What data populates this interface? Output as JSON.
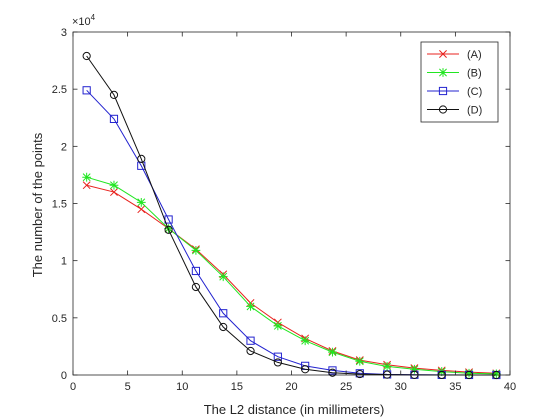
{
  "chart_data": {
    "type": "line",
    "title": "",
    "xlabel": "The L2 distance (in millimeters)",
    "ylabel": "The number of the points",
    "xlim": [
      0,
      40
    ],
    "ylim": [
      0,
      30000
    ],
    "x_ticks": [
      0,
      5,
      10,
      15,
      20,
      25,
      30,
      35,
      40
    ],
    "x_tick_labels": [
      "0",
      "5",
      "10",
      "15",
      "20",
      "25",
      "30",
      "35",
      "40"
    ],
    "y_ticks": [
      0,
      5000,
      10000,
      15000,
      20000,
      25000,
      30000
    ],
    "y_tick_labels": [
      "0",
      "0.5",
      "1",
      "1.5",
      "2",
      "2.5",
      "3"
    ],
    "y_exponent": {
      "base": "×10",
      "power": "4"
    },
    "grid": false,
    "legend_position": "top-right",
    "x": [
      1.25,
      3.75,
      6.25,
      8.75,
      11.25,
      13.75,
      16.25,
      18.75,
      21.25,
      23.75,
      26.25,
      28.75,
      31.25,
      33.75,
      36.25,
      38.75
    ],
    "series": [
      {
        "name": "(A)",
        "color": "#e8231f",
        "marker": "x",
        "values": [
          16600,
          16000,
          14500,
          12800,
          11000,
          8800,
          6300,
          4600,
          3200,
          2100,
          1300,
          900,
          600,
          400,
          250,
          150
        ]
      },
      {
        "name": "(B)",
        "color": "#21e621",
        "marker": "star",
        "values": [
          17300,
          16600,
          15100,
          12800,
          10900,
          8600,
          6000,
          4300,
          3000,
          2000,
          1200,
          750,
          500,
          300,
          150,
          100
        ]
      },
      {
        "name": "(C)",
        "color": "#2323cf",
        "marker": "square",
        "values": [
          24900,
          22400,
          18300,
          13600,
          9100,
          5400,
          3000,
          1600,
          800,
          400,
          150,
          50,
          20,
          10,
          5,
          0
        ]
      },
      {
        "name": "(D)",
        "color": "#111111",
        "marker": "circle",
        "values": [
          27900,
          24500,
          18900,
          12700,
          7700,
          4200,
          2100,
          1100,
          500,
          200,
          80,
          30,
          10,
          5,
          0,
          0
        ]
      }
    ]
  }
}
